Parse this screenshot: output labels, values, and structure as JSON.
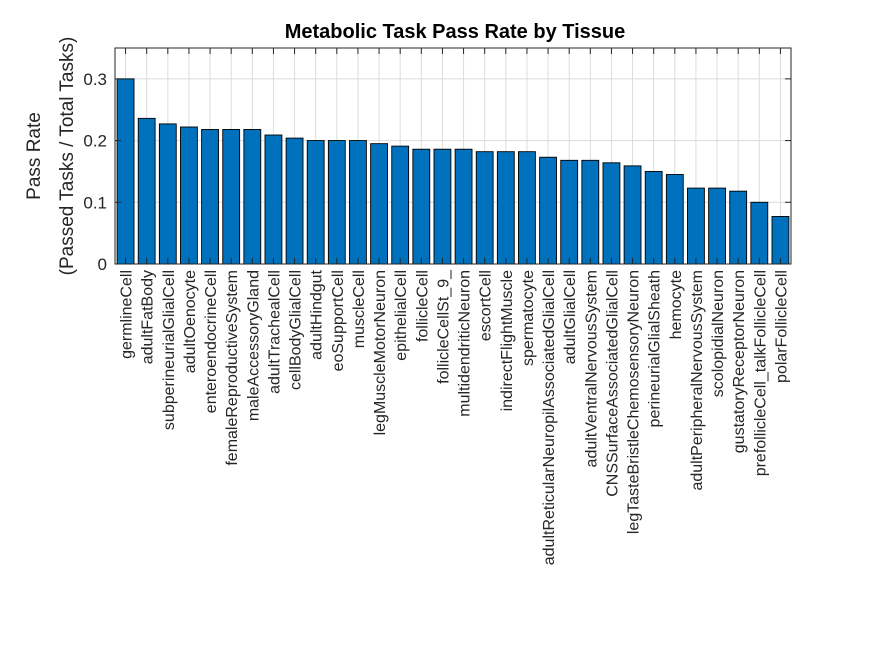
{
  "chart_data": {
    "type": "bar",
    "title": "Metabolic Task Pass Rate by Tissue",
    "xlabel": "",
    "ylabel_lines": [
      "Pass Rate",
      "(Passed Tasks / Total Tasks)"
    ],
    "ylim": [
      0,
      0.35
    ],
    "yticks": [
      0,
      0.1,
      0.2,
      0.3
    ],
    "ytick_labels": [
      "0",
      "0.1",
      "0.2",
      "0.3"
    ],
    "grid": true,
    "bar_color": "#0072BD",
    "categories": [
      "germlineCell",
      "adultFatBody",
      "subperineurialGlialCell",
      "adultOenocyte",
      "enteroendocrineCell",
      "femaleReproductiveSystem",
      "maleAccessoryGland",
      "adultTrachealCell",
      "cellBodyGlialCell",
      "adultHindgut",
      "eoSupportCell",
      "muscleCell",
      "legMuscleMotorNeuron",
      "epithelialCell",
      "follicleCell",
      "follicleCellSt_9_",
      "multidendriticNeuron",
      "escortCell",
      "indirectFlightMuscle",
      "spermatocyte",
      "adultReticularNeuropilAssociatedGlialCell",
      "adultGlialCell",
      "adultVentralNervousSystem",
      "CNSSurfaceAssociatedGlialCell",
      "legTasteBristleChemosensoryNeuron",
      "perineurialGlialSheath",
      "hemocyte",
      "adultPeripheralNervousSystem",
      "scolopidialNeuron",
      "gustatoryReceptorNeuron",
      "prefollicleCell_talkFollicleCell",
      "polarFollicleCell"
    ],
    "values": [
      0.3,
      0.236,
      0.227,
      0.222,
      0.218,
      0.218,
      0.218,
      0.209,
      0.204,
      0.2,
      0.2,
      0.2,
      0.195,
      0.191,
      0.186,
      0.186,
      0.186,
      0.182,
      0.182,
      0.182,
      0.173,
      0.168,
      0.168,
      0.164,
      0.159,
      0.15,
      0.145,
      0.123,
      0.123,
      0.118,
      0.1,
      0.077
    ]
  }
}
